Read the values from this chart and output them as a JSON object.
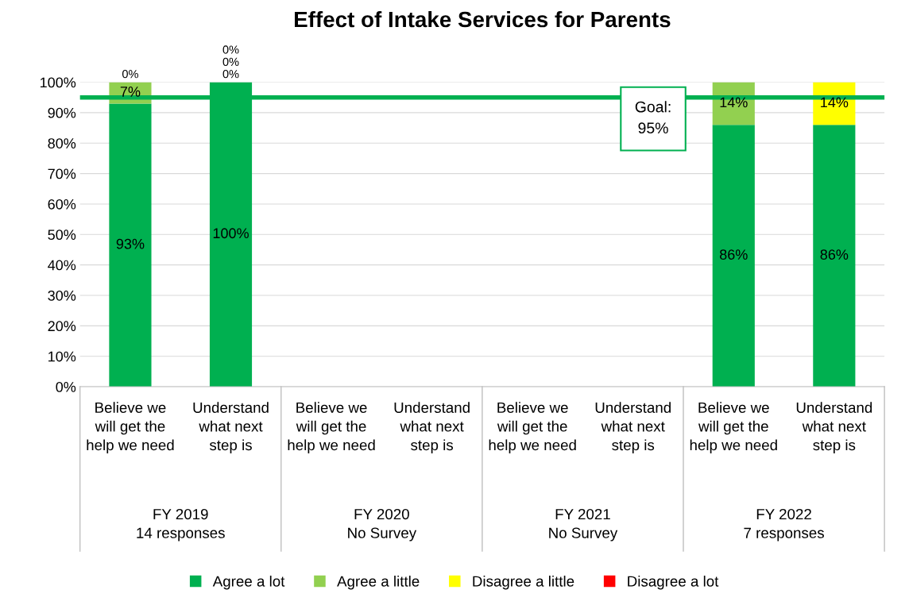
{
  "chart_data": {
    "type": "bar",
    "stacked": true,
    "title": "Effect of Intake Services for Parents",
    "categories": [
      "Believe we will get the help we need",
      "Understand what next step is",
      "Believe we will get the help we need",
      "Understand what next step is",
      "Believe we will get the help we need",
      "Understand what next step is",
      "Believe we will get the help we need",
      "Understand what next step is"
    ],
    "annotations": [
      "FY 2019\n14 responses",
      "FY 2020\nNo Survey",
      "FY 2021\nNo Survey",
      "FY 2022\n7 responses"
    ],
    "series": [
      {
        "name": "Agree a lot",
        "color": "#00b050",
        "values": [
          93,
          100,
          null,
          null,
          null,
          null,
          86,
          86
        ],
        "value_labels": [
          "93%",
          "100%",
          null,
          null,
          null,
          null,
          "86%",
          "86%"
        ]
      },
      {
        "name": "Agree a little",
        "color": "#92d050",
        "values": [
          7,
          0,
          null,
          null,
          null,
          null,
          14,
          null
        ],
        "value_labels": [
          "7%",
          "0%",
          null,
          null,
          null,
          null,
          "14%",
          null
        ]
      },
      {
        "name": "Disagree a little",
        "color": "#ffff00",
        "values": [
          0,
          0,
          null,
          null,
          null,
          null,
          null,
          14
        ],
        "value_labels": [
          "0%",
          "0%",
          null,
          null,
          null,
          null,
          null,
          "14%"
        ]
      },
      {
        "name": "Disagree a lot",
        "color": "#ff0000",
        "values": [
          null,
          0,
          null,
          null,
          null,
          null,
          null,
          null
        ],
        "value_labels": [
          null,
          "0%",
          null,
          null,
          null,
          null,
          null,
          null
        ]
      }
    ],
    "ylim": [
      0,
      100
    ],
    "yticks": [
      {
        "value": 0,
        "label": "0%"
      },
      {
        "value": 10,
        "label": "10%"
      },
      {
        "value": 20,
        "label": "20%"
      },
      {
        "value": 30,
        "label": "30%"
      },
      {
        "value": 40,
        "label": "40%"
      },
      {
        "value": 50,
        "label": "50%"
      },
      {
        "value": 60,
        "label": "60%"
      },
      {
        "value": 70,
        "label": "70%"
      },
      {
        "value": 80,
        "label": "80%"
      },
      {
        "value": 90,
        "label": "90%"
      },
      {
        "value": 100,
        "label": "100%"
      }
    ],
    "grid": "y",
    "legend": "bottom",
    "ref_lines": [
      {
        "axis": "y",
        "value": 95,
        "label": "Goal:\n95%",
        "color": "#00b050",
        "line_style": "solid"
      }
    ]
  }
}
